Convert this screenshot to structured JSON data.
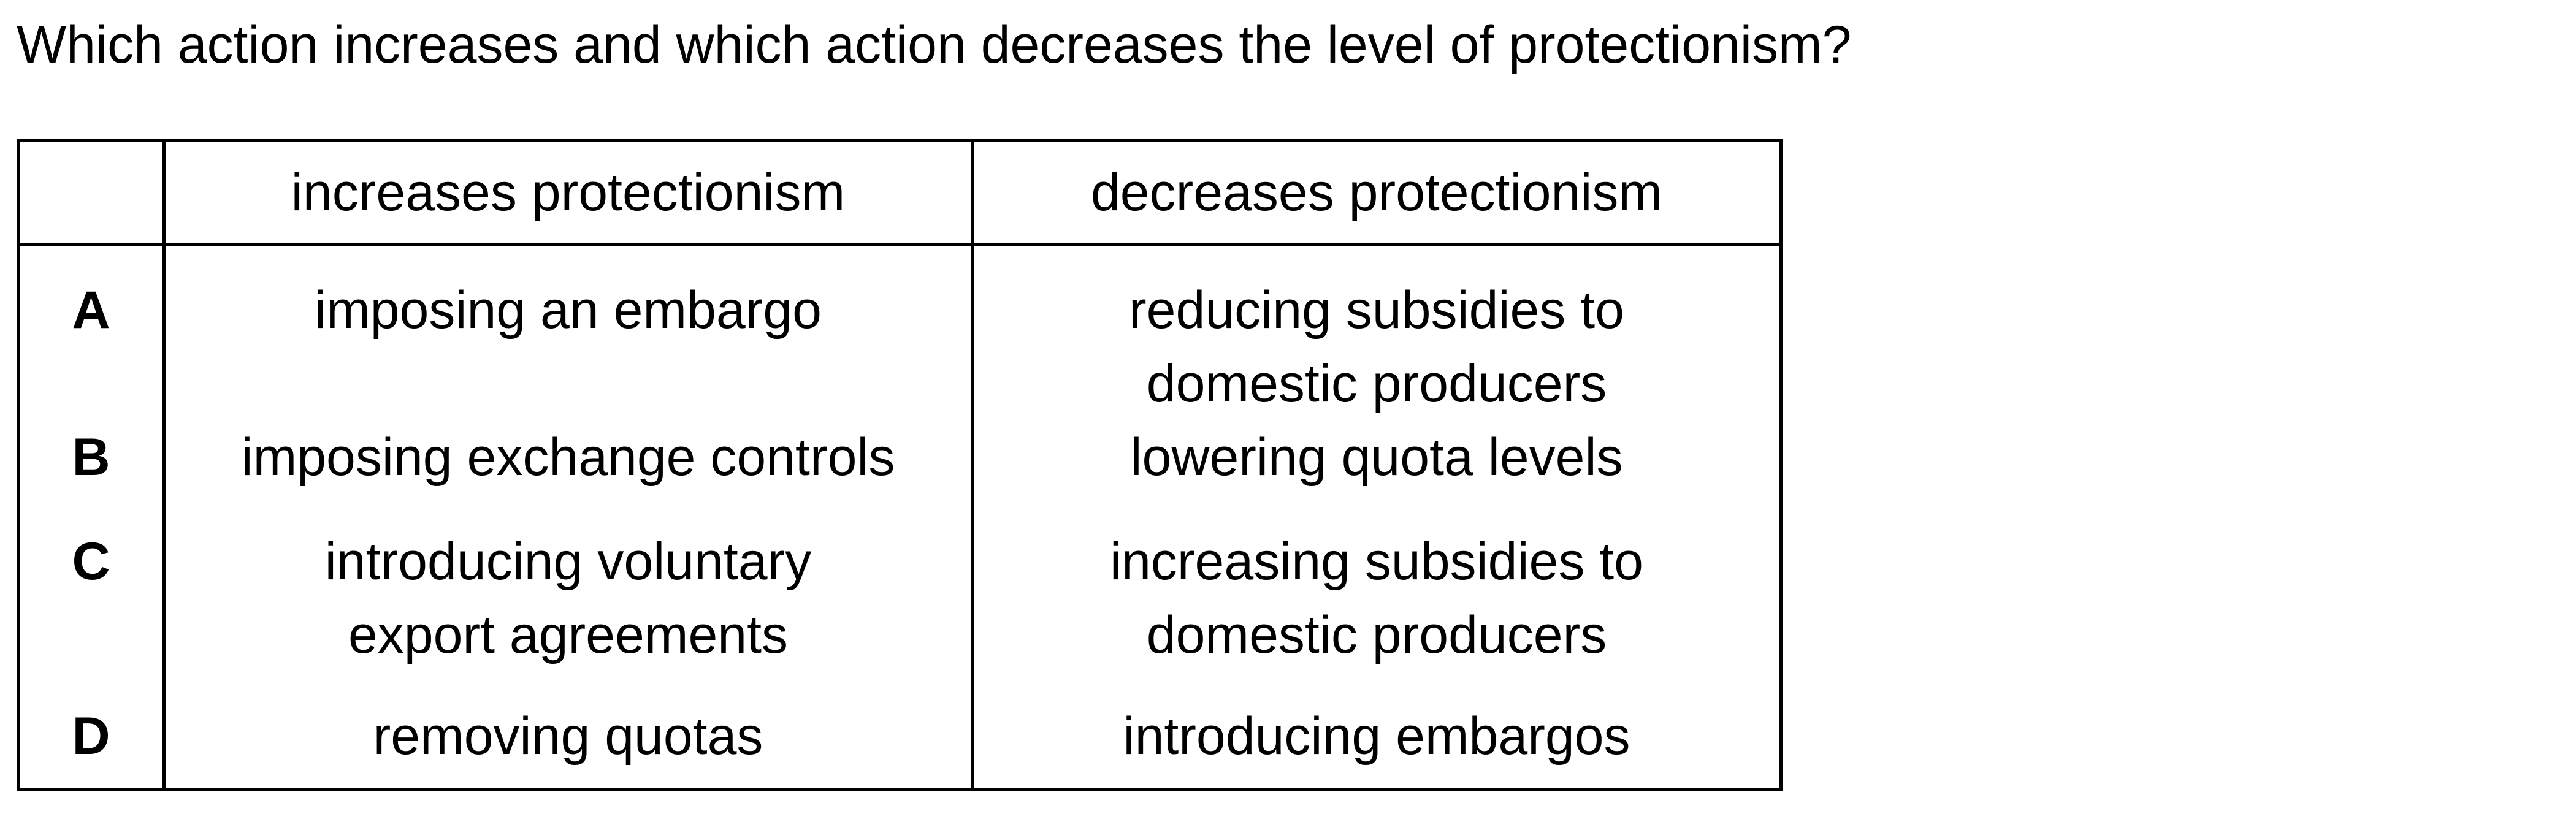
{
  "question": "Which action increases and which action decreases the level of protectionism?",
  "table": {
    "headers": [
      "",
      "increases protectionism",
      "decreases protectionism"
    ],
    "rows": [
      {
        "letter": "A",
        "increases": [
          "imposing an embargo"
        ],
        "decreases": [
          "reducing subsidies to",
          "domestic producers"
        ]
      },
      {
        "letter": "B",
        "increases": [
          "imposing exchange controls"
        ],
        "decreases": [
          "lowering quota levels"
        ]
      },
      {
        "letter": "C",
        "increases": [
          "introducing voluntary",
          "export agreements"
        ],
        "decreases": [
          "increasing subsidies to",
          "domestic producers"
        ]
      },
      {
        "letter": "D",
        "increases": [
          "removing quotas"
        ],
        "decreases": [
          "introducing embargos"
        ]
      }
    ]
  }
}
